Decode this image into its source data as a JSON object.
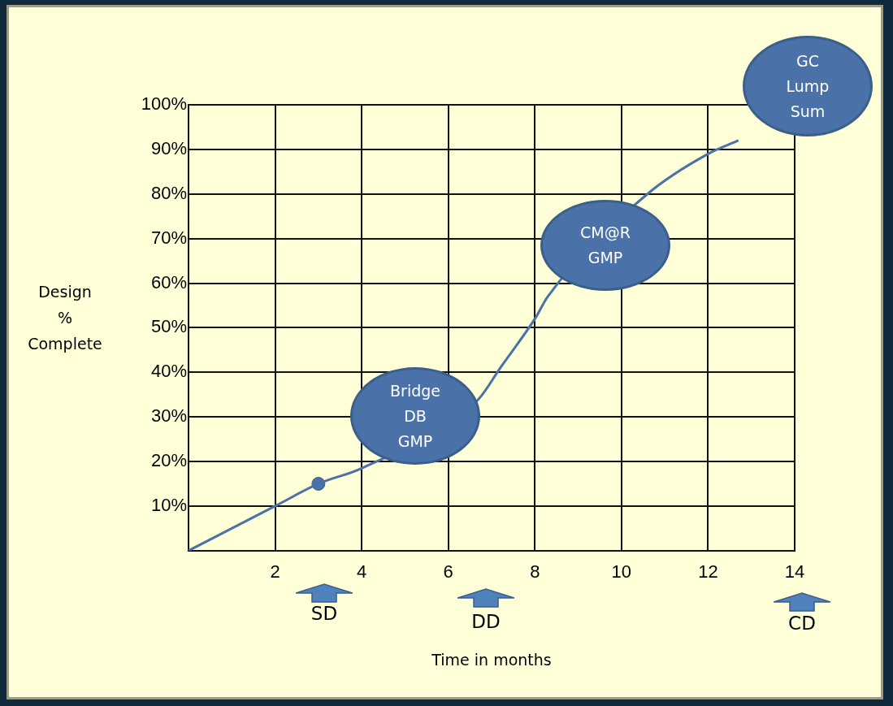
{
  "chart_data": {
    "type": "line",
    "xlabel": "Time in months",
    "ylabel": "Design % Complete",
    "series": [
      {
        "type": "line",
        "color": "#4a72a8",
        "marker": "none",
        "x": [
          0,
          2,
          3,
          4,
          6.7,
          7.2,
          8,
          8.3,
          10.6,
          12,
          12.7
        ],
        "values": [
          0,
          10,
          15,
          18.5,
          34,
          41,
          52,
          57,
          80,
          89,
          92
        ]
      },
      {
        "type": "scatter",
        "color": "#4a72a8",
        "marker": "circle",
        "x": [
          3
        ],
        "values": [
          15
        ]
      }
    ],
    "xlim": [
      0,
      14
    ],
    "xticks": [
      {
        "value": 0,
        "label": null
      },
      2,
      4,
      6,
      8,
      10,
      12,
      14
    ],
    "ylim": [
      0,
      100
    ],
    "yticks": [
      {
        "value": 0,
        "label": null
      },
      {
        "value": 10,
        "label": "10%"
      },
      {
        "value": 20,
        "label": "20%"
      },
      {
        "value": 30,
        "label": "30%"
      },
      {
        "value": 40,
        "label": "40%"
      },
      {
        "value": 50,
        "label": "50%"
      },
      {
        "value": 60,
        "label": "60%"
      },
      {
        "value": 70,
        "label": "70%"
      },
      {
        "value": 80,
        "label": "80%"
      },
      {
        "value": 90,
        "label": "90%"
      },
      {
        "value": 100,
        "label": "100%"
      }
    ],
    "grid": true,
    "legend": false,
    "annotations": [
      "Bridge DB GMP",
      "CM@R GMP",
      "GC Lump Sum",
      "SD",
      "DD",
      "CD"
    ]
  }
}
